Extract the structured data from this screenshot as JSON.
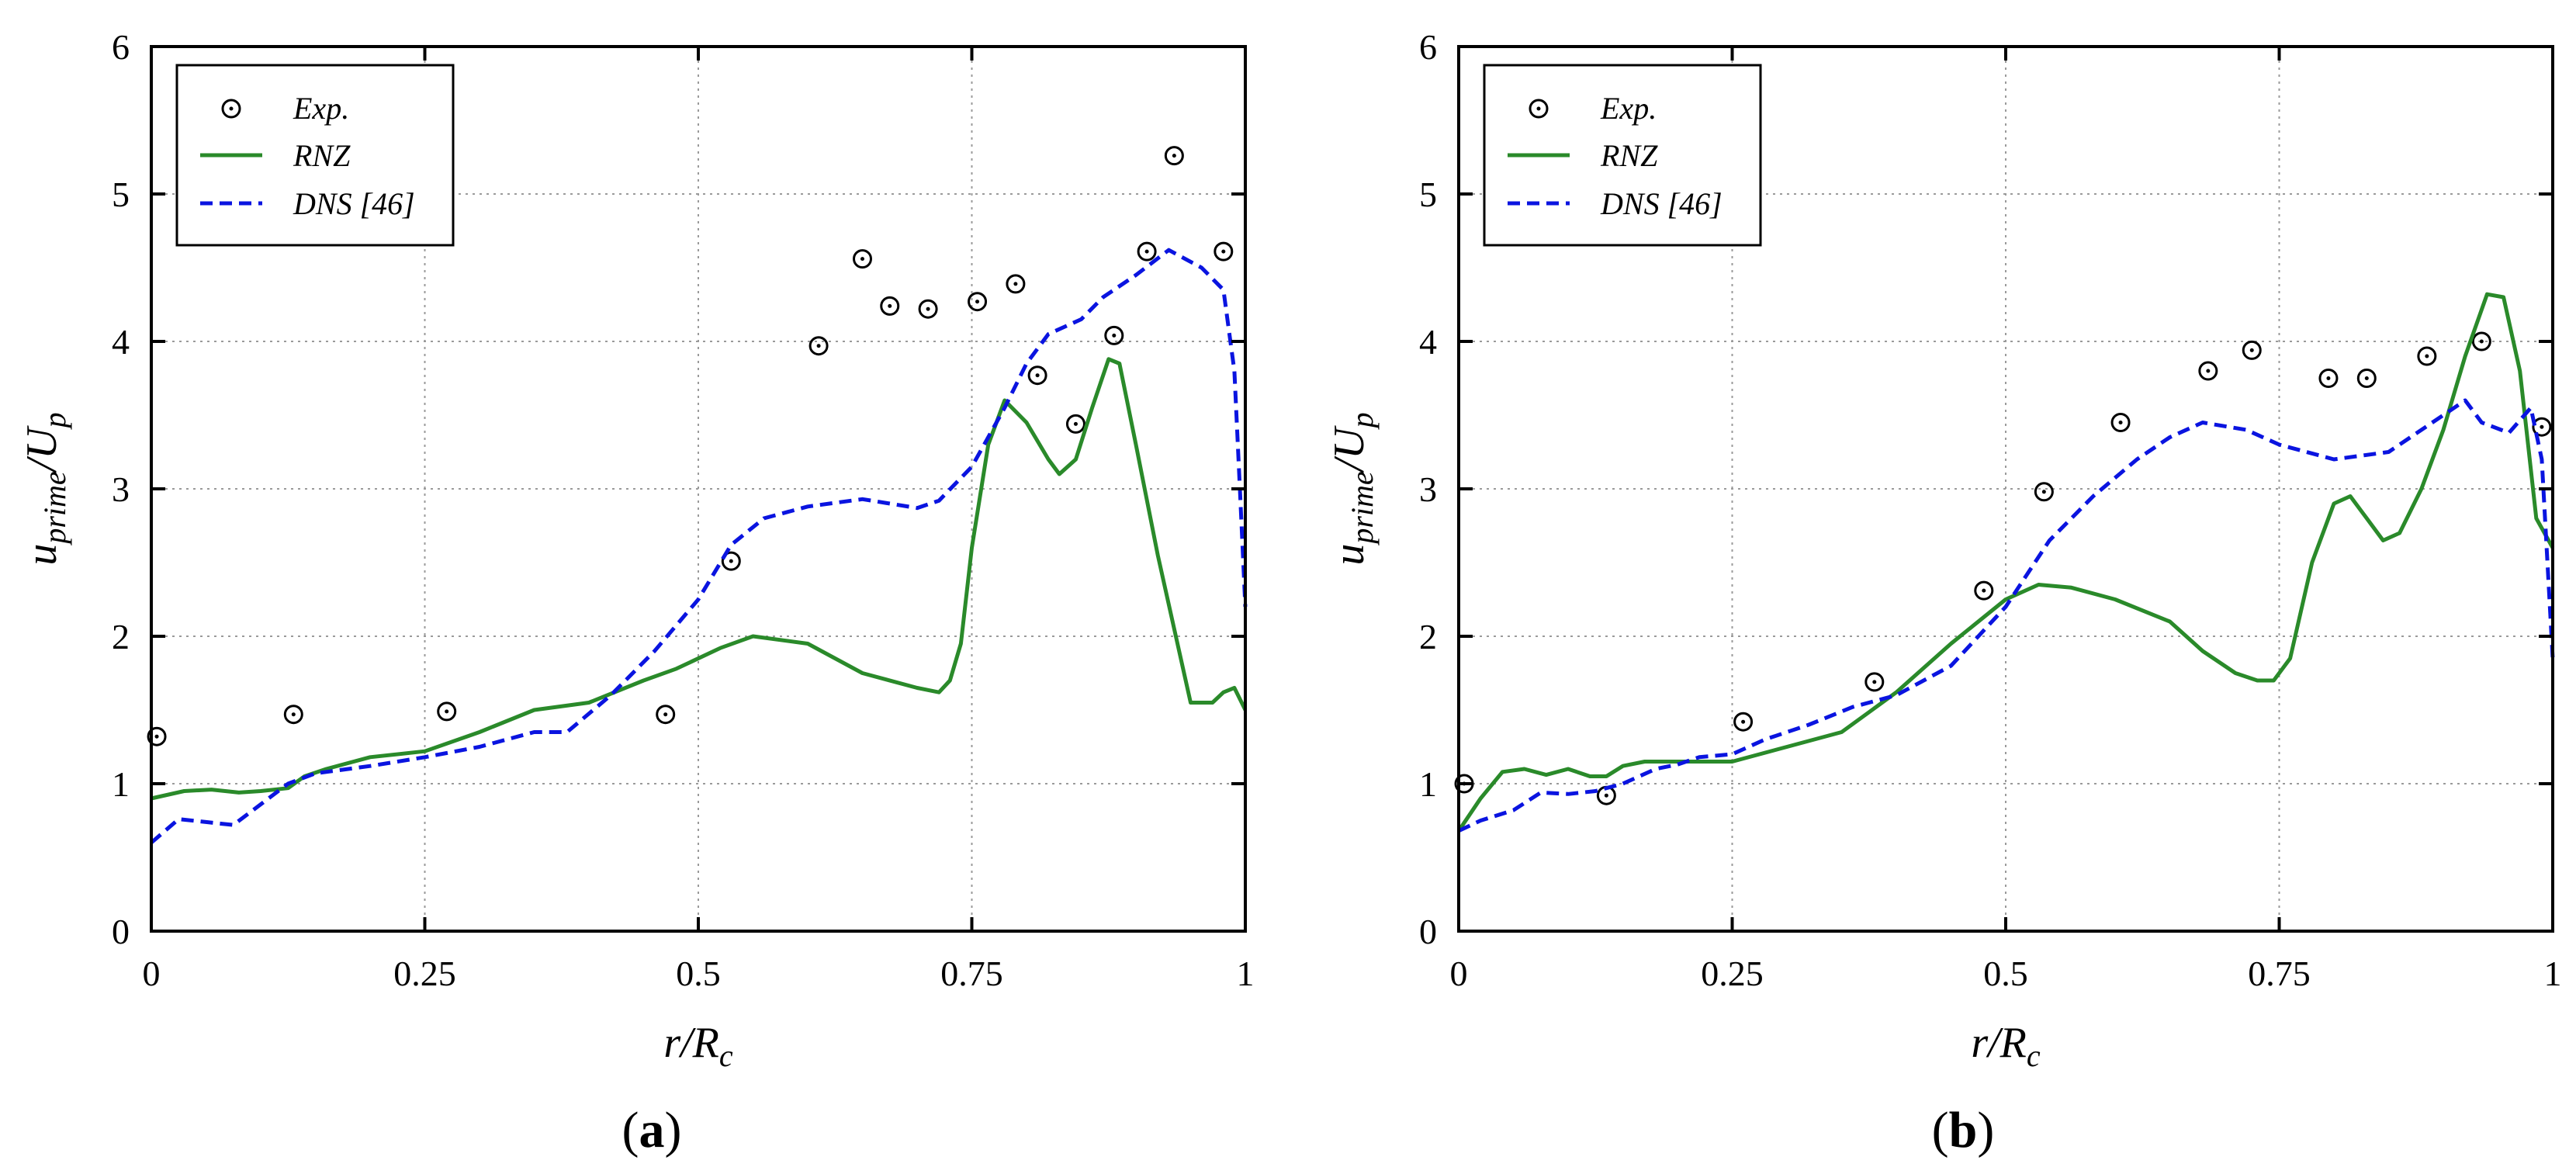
{
  "figure": {
    "caption_a": "(a)",
    "caption_b": "(b)"
  },
  "chart_data": [
    {
      "type": "line",
      "panel": "a",
      "xlabel": "r/R_c",
      "ylabel": "u_prime/U_p",
      "xlim": [
        0,
        1
      ],
      "ylim": [
        0,
        6
      ],
      "xticks": [
        0,
        0.25,
        0.5,
        0.75,
        1
      ],
      "xtick_labels": [
        "0",
        "0.25",
        "0.5",
        "0.75",
        "1"
      ],
      "yticks": [
        0,
        1,
        2,
        3,
        4,
        5,
        6
      ],
      "ytick_labels": [
        "0",
        "1",
        "2",
        "3",
        "4",
        "5",
        "6"
      ],
      "grid": true,
      "legend": "top-left",
      "series": [
        {
          "name": "Exp.",
          "style": "circle-dot",
          "color": "#000000",
          "x": [
            0.005,
            0.13,
            0.27,
            0.47,
            0.53,
            0.61,
            0.65,
            0.675,
            0.71,
            0.755,
            0.79,
            0.81,
            0.845,
            0.88,
            0.91,
            0.935,
            0.98
          ],
          "y": [
            1.32,
            1.47,
            1.49,
            1.47,
            2.51,
            3.97,
            4.56,
            4.24,
            4.22,
            4.27,
            4.39,
            3.77,
            3.44,
            4.04,
            4.61,
            5.26,
            4.61
          ]
        },
        {
          "name": "RNZ",
          "style": "solid",
          "color": "#2a8a2a",
          "x": [
            0,
            0.03,
            0.055,
            0.08,
            0.1,
            0.125,
            0.14,
            0.16,
            0.2,
            0.25,
            0.3,
            0.35,
            0.4,
            0.45,
            0.48,
            0.52,
            0.55,
            0.6,
            0.65,
            0.7,
            0.72,
            0.73,
            0.74,
            0.75,
            0.765,
            0.78,
            0.8,
            0.82,
            0.83,
            0.845,
            0.86,
            0.875,
            0.885,
            0.9,
            0.92,
            0.95,
            0.97,
            0.98,
            0.99,
            1.0
          ],
          "y": [
            0.9,
            0.95,
            0.96,
            0.94,
            0.95,
            0.97,
            1.05,
            1.1,
            1.18,
            1.22,
            1.35,
            1.5,
            1.55,
            1.7,
            1.78,
            1.92,
            2.0,
            1.95,
            1.75,
            1.65,
            1.62,
            1.7,
            1.95,
            2.6,
            3.3,
            3.6,
            3.45,
            3.2,
            3.1,
            3.2,
            3.55,
            3.88,
            3.85,
            3.3,
            2.55,
            1.55,
            1.55,
            1.62,
            1.65,
            1.5
          ]
        },
        {
          "name": "DNS [46]",
          "style": "dashed",
          "color": "#0a14e0",
          "x": [
            0,
            0.025,
            0.05,
            0.075,
            0.1,
            0.125,
            0.15,
            0.2,
            0.25,
            0.3,
            0.35,
            0.38,
            0.42,
            0.46,
            0.5,
            0.53,
            0.56,
            0.6,
            0.65,
            0.7,
            0.72,
            0.75,
            0.78,
            0.8,
            0.82,
            0.85,
            0.87,
            0.9,
            0.93,
            0.96,
            0.98,
            0.99,
            0.995,
            1.0
          ],
          "y": [
            0.6,
            0.76,
            0.74,
            0.72,
            0.86,
            1.0,
            1.07,
            1.12,
            1.18,
            1.25,
            1.35,
            1.35,
            1.6,
            1.9,
            2.25,
            2.62,
            2.8,
            2.88,
            2.93,
            2.87,
            2.92,
            3.15,
            3.55,
            3.85,
            4.05,
            4.15,
            4.3,
            4.45,
            4.62,
            4.5,
            4.35,
            3.8,
            3.0,
            2.2
          ]
        }
      ]
    },
    {
      "type": "line",
      "panel": "b",
      "xlabel": "r/R_c",
      "ylabel": "u_prime/U_p",
      "xlim": [
        0,
        1
      ],
      "ylim": [
        0,
        6
      ],
      "xticks": [
        0,
        0.25,
        0.5,
        0.75,
        1
      ],
      "xtick_labels": [
        "0",
        "0.25",
        "0.5",
        "0.75",
        "1"
      ],
      "yticks": [
        0,
        1,
        2,
        3,
        4,
        5,
        6
      ],
      "ytick_labels": [
        "0",
        "1",
        "2",
        "3",
        "4",
        "5",
        "6"
      ],
      "grid": true,
      "legend": "top-left",
      "series": [
        {
          "name": "Exp.",
          "style": "circle-dot",
          "color": "#000000",
          "x": [
            0.005,
            0.135,
            0.26,
            0.38,
            0.48,
            0.535,
            0.605,
            0.685,
            0.725,
            0.795,
            0.83,
            0.885,
            0.935,
            0.99
          ],
          "y": [
            1.0,
            0.92,
            1.42,
            1.69,
            2.31,
            2.98,
            3.45,
            3.8,
            3.94,
            3.75,
            3.75,
            3.9,
            4.0,
            3.42
          ]
        },
        {
          "name": "RNZ",
          "style": "solid",
          "color": "#2a8a2a",
          "x": [
            0,
            0.02,
            0.04,
            0.06,
            0.08,
            0.1,
            0.12,
            0.135,
            0.15,
            0.17,
            0.2,
            0.25,
            0.3,
            0.35,
            0.4,
            0.45,
            0.5,
            0.53,
            0.56,
            0.6,
            0.65,
            0.68,
            0.71,
            0.73,
            0.745,
            0.76,
            0.78,
            0.8,
            0.815,
            0.83,
            0.845,
            0.86,
            0.88,
            0.9,
            0.92,
            0.94,
            0.955,
            0.97,
            0.985,
            1.0
          ],
          "y": [
            0.68,
            0.9,
            1.08,
            1.1,
            1.06,
            1.1,
            1.05,
            1.05,
            1.12,
            1.15,
            1.15,
            1.15,
            1.25,
            1.35,
            1.62,
            1.95,
            2.25,
            2.35,
            2.33,
            2.25,
            2.1,
            1.9,
            1.75,
            1.7,
            1.7,
            1.85,
            2.5,
            2.9,
            2.95,
            2.8,
            2.65,
            2.7,
            3.0,
            3.4,
            3.9,
            4.32,
            4.3,
            3.8,
            2.8,
            2.6
          ]
        },
        {
          "name": "DNS [46]",
          "style": "dashed",
          "color": "#0a14e0",
          "x": [
            0,
            0.02,
            0.05,
            0.075,
            0.1,
            0.125,
            0.15,
            0.18,
            0.2,
            0.22,
            0.25,
            0.28,
            0.32,
            0.36,
            0.4,
            0.45,
            0.5,
            0.54,
            0.58,
            0.62,
            0.65,
            0.68,
            0.72,
            0.75,
            0.8,
            0.85,
            0.9,
            0.92,
            0.935,
            0.96,
            0.98,
            0.99,
            1.0
          ],
          "y": [
            0.68,
            0.75,
            0.82,
            0.94,
            0.93,
            0.95,
            1.0,
            1.1,
            1.13,
            1.18,
            1.2,
            1.3,
            1.4,
            1.52,
            1.6,
            1.8,
            2.2,
            2.65,
            2.95,
            3.2,
            3.35,
            3.45,
            3.4,
            3.3,
            3.2,
            3.25,
            3.5,
            3.6,
            3.45,
            3.38,
            3.55,
            3.2,
            1.85
          ]
        }
      ]
    }
  ]
}
